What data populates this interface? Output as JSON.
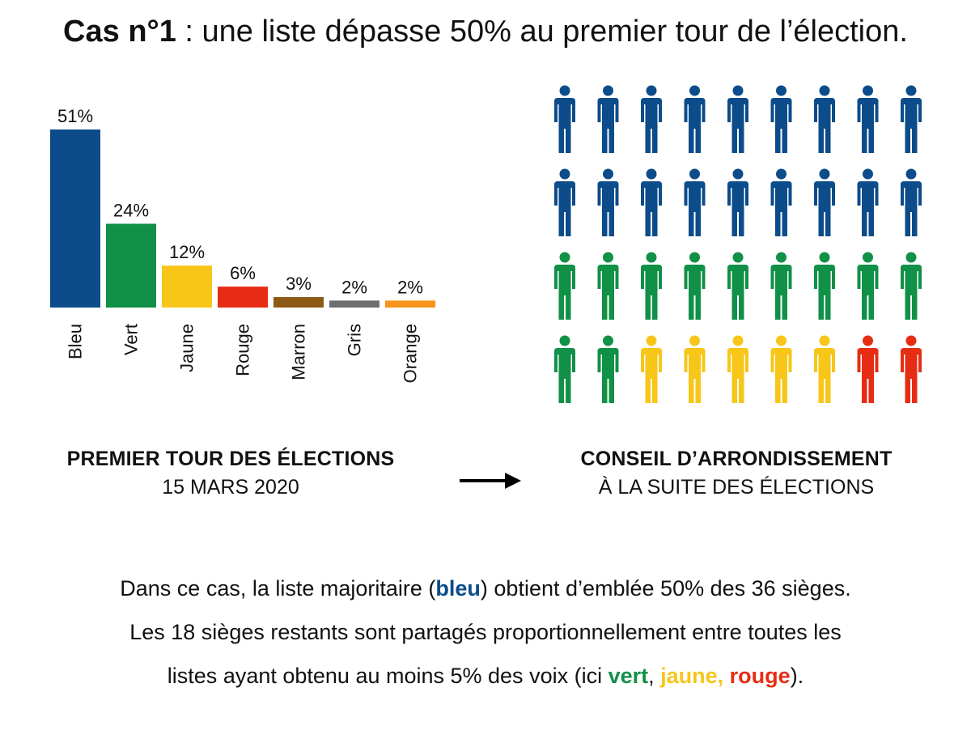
{
  "title": {
    "prefix": "Cas n°1",
    "rest": " : une liste dépasse 50% au premier tour de l’élection."
  },
  "chart_data": [
    {
      "type": "bar",
      "categories": [
        "Bleu",
        "Vert",
        "Jaune",
        "Rouge",
        "Marron",
        "Gris",
        "Orange"
      ],
      "values": [
        51,
        24,
        12,
        6,
        3,
        2,
        2
      ],
      "data_labels": [
        "51%",
        "24%",
        "12%",
        "6%",
        "3%",
        "2%",
        "2%"
      ],
      "colors": [
        "#0c4c8a",
        "#119048",
        "#f7c619",
        "#e62d14",
        "#8b5a14",
        "#6d6e71",
        "#f7941d"
      ],
      "ylim": [
        0,
        51
      ],
      "grid": false,
      "title": "",
      "xlabel": "",
      "ylabel": ""
    },
    {
      "type": "pictogram",
      "total": 36,
      "columns": 9,
      "series": [
        {
          "name": "Bleu",
          "count": 18,
          "color": "#0c4c8a"
        },
        {
          "name": "Vert",
          "count": 11,
          "color": "#119048"
        },
        {
          "name": "Jaune",
          "count": 5,
          "color": "#f7c619"
        },
        {
          "name": "Rouge",
          "count": 2,
          "color": "#e62d14"
        }
      ]
    }
  ],
  "captions": {
    "left": {
      "heading": "PREMIER TOUR DES ÉLECTIONS",
      "sub": "15 MARS 2020"
    },
    "right": {
      "heading": "CONSEIL D’ARRONDISSEMENT",
      "sub": "À LA SUITE DES ÉLECTIONS"
    },
    "arrow_icon": "arrow-right-icon"
  },
  "explanation": {
    "line1_a": "Dans ce cas, la liste majoritaire (",
    "line1_kw": "bleu",
    "line1_b": ") obtient d’emblée 50% des 36 sièges.",
    "line2": "Les 18 sièges restants sont partagés proportionnellement entre toutes les",
    "line3_a": "listes ayant obtenu au moins 5% des voix (ici ",
    "line3_vert": "vert",
    "line3_sep": ", ",
    "line3_jaune": "jaune,",
    "line3_space": " ",
    "line3_rouge": "rouge",
    "line3_end": ")."
  }
}
